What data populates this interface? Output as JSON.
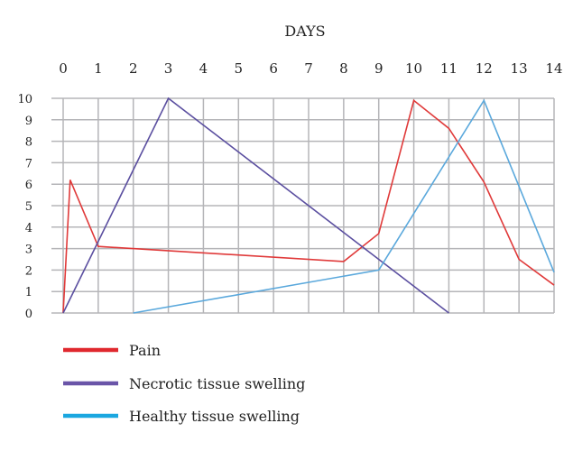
{
  "chart_data": {
    "type": "line",
    "title": "",
    "xlabel": "DAYS",
    "ylabel": "",
    "xlim": [
      0,
      14
    ],
    "ylim": [
      0,
      10
    ],
    "x_ticks": [
      0,
      1,
      2,
      3,
      4,
      5,
      6,
      7,
      8,
      9,
      10,
      11,
      12,
      13,
      14
    ],
    "y_ticks": [
      0,
      1,
      2,
      3,
      4,
      5,
      6,
      7,
      8,
      9,
      10
    ],
    "grid": true,
    "x_axis_position": "top",
    "legend_placement": "bottom-left",
    "series": [
      {
        "name": "Pain",
        "color": "#e03a3a",
        "points": [
          [
            0,
            0
          ],
          [
            0.2,
            6.2
          ],
          [
            1,
            3.1
          ],
          [
            8,
            2.4
          ],
          [
            9,
            3.7
          ],
          [
            10,
            9.9
          ],
          [
            11,
            8.6
          ],
          [
            12,
            6.1
          ],
          [
            13,
            2.5
          ],
          [
            14,
            1.3
          ]
        ]
      },
      {
        "name": "Necrotic tissue swelling",
        "color": "#5b4fa0",
        "points": [
          [
            0,
            0
          ],
          [
            3,
            10
          ],
          [
            11,
            0
          ]
        ]
      },
      {
        "name": "Healthy tissue swelling",
        "color": "#5aa8dc",
        "points": [
          [
            2,
            0
          ],
          [
            9,
            2
          ],
          [
            12,
            9.9
          ],
          [
            14,
            1.9
          ]
        ]
      }
    ],
    "legend_colors": [
      "#e0282e",
      "#6a55a8",
      "#1aa7e0"
    ]
  }
}
